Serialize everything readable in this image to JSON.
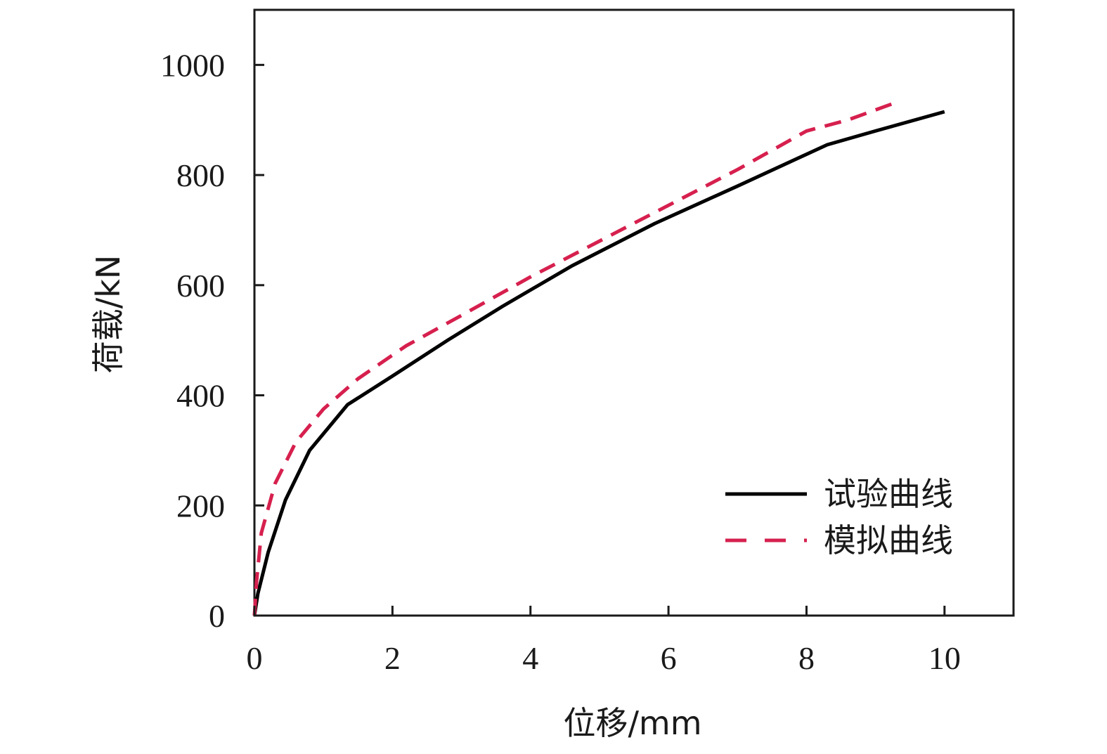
{
  "chart_data": {
    "type": "line",
    "title": "",
    "xlabel": "位移/mm",
    "ylabel": "荷载/kN",
    "xlim": [
      0,
      11
    ],
    "ylim": [
      0,
      1100
    ],
    "xticks": [
      "0",
      "2",
      "4",
      "6",
      "8",
      "10"
    ],
    "yticks": [
      "0",
      "200",
      "400",
      "600",
      "800",
      "1000"
    ],
    "grid": false,
    "legend_position": "bottom-right",
    "series": [
      {
        "name": "试验曲线",
        "color": "#000000",
        "dash": "solid",
        "x": [
          0,
          0.05,
          0.2,
          0.45,
          0.8,
          1.35,
          2.0,
          2.8,
          3.6,
          4.6,
          5.8,
          7.0,
          8.3,
          9.0,
          10.0
        ],
        "y": [
          0,
          40,
          115,
          210,
          300,
          383,
          435,
          500,
          562,
          635,
          712,
          780,
          855,
          880,
          915
        ]
      },
      {
        "name": "模拟曲线",
        "color": "#d6204e",
        "dash": "dashed",
        "x": [
          0,
          0.03,
          0.1,
          0.3,
          0.6,
          1.0,
          1.5,
          2.2,
          3.0,
          4.0,
          5.0,
          6.0,
          7.0,
          8.0,
          8.6,
          9.3
        ],
        "y": [
          0,
          60,
          150,
          240,
          315,
          375,
          430,
          490,
          545,
          615,
          680,
          745,
          810,
          880,
          900,
          932
        ]
      }
    ]
  }
}
